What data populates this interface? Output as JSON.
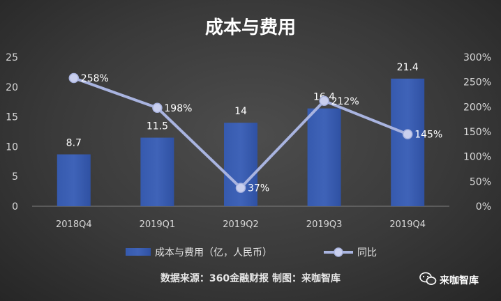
{
  "chart_data": {
    "type": "bar",
    "title": "成本与费用",
    "categories": [
      "2018Q4",
      "2019Q1",
      "2019Q2",
      "2019Q3",
      "2019Q4"
    ],
    "series": [
      {
        "name": "成本与费用（亿，人民币）",
        "kind": "bar",
        "axis": "left",
        "values": [
          8.7,
          11.5,
          14,
          16.4,
          21.4
        ],
        "labels": [
          "8.7",
          "11.5",
          "14",
          "16.4",
          "21.4"
        ],
        "color": "#3f63b8"
      },
      {
        "name": "同比",
        "kind": "line",
        "axis": "right",
        "values": [
          258,
          198,
          37,
          212,
          145
        ],
        "labels": [
          "258%",
          "198%",
          "37%",
          "212%",
          "145%"
        ],
        "color": "#a9b4e0"
      }
    ],
    "y_left": {
      "min": 0,
      "max": 25,
      "ticks": [
        "0",
        "5",
        "10",
        "15",
        "20",
        "25"
      ]
    },
    "y_right": {
      "min": 0,
      "max": 300,
      "ticks": [
        "0%",
        "50%",
        "100%",
        "150%",
        "200%",
        "250%",
        "300%"
      ]
    },
    "grid": false,
    "legend_position": "bottom"
  },
  "source": "数据来源：360金融财报 制图：来咖智库",
  "watermark": {
    "text": "来咖智库",
    "icon": "wechat-icon"
  }
}
